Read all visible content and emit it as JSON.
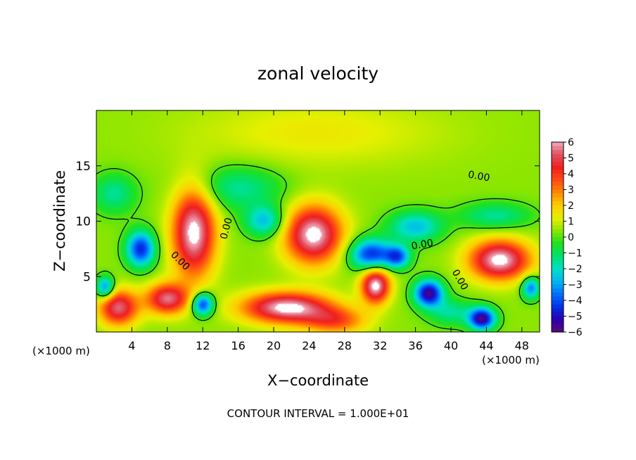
{
  "chart_data": {
    "type": "heatmap",
    "title": "zonal velocity",
    "xlabel": "X−coordinate",
    "ylabel": "Z−coordinate",
    "x_unit_left": "(×1000 m)",
    "x_unit_right": "(×1000 m)",
    "footer": "CONTOUR INTERVAL = 1.000E+01",
    "xlim": [
      0,
      50
    ],
    "ylim": [
      0,
      20
    ],
    "x_ticks": [
      4,
      8,
      12,
      16,
      20,
      24,
      28,
      32,
      36,
      40,
      44,
      48
    ],
    "x_tick_labels": [
      "4",
      "8",
      "12",
      "16",
      "20",
      "24",
      "28",
      "32",
      "36",
      "40",
      "44",
      "48"
    ],
    "y_ticks": [
      5,
      10,
      15
    ],
    "y_tick_labels": [
      "5",
      "10",
      "15"
    ],
    "colorbar": {
      "min": -6,
      "max": 6,
      "labels": [
        "6",
        "5",
        "4",
        "3",
        "2",
        "1",
        "0",
        "−1",
        "−2",
        "−3",
        "−4",
        "−5",
        "−6"
      ],
      "label_values": [
        6,
        5,
        4,
        3,
        2,
        1,
        0,
        -1,
        -2,
        -3,
        -4,
        -5,
        -6
      ],
      "colors": [
        "#5a0a7a",
        "#2a00b0",
        "#0033e8",
        "#0070ff",
        "#00b8f0",
        "#00e0c8",
        "#00e06a",
        "#20e020",
        "#8ce600",
        "#e6f000",
        "#ffcc00",
        "#ff8a00",
        "#ff4a14",
        "#f01e1e",
        "#e05060",
        "#f4a8b8"
      ]
    },
    "contour_labels": [
      "0.00",
      "0.00",
      "0.00",
      "0.00",
      "0.00"
    ],
    "grid": false,
    "features": [
      {
        "x": 11,
        "z": 9.0,
        "value": 6,
        "sx": 2.4,
        "sz": 4.0
      },
      {
        "x": 24.5,
        "z": 8.8,
        "value": 6,
        "sx": 3.2,
        "sz": 2.6
      },
      {
        "x": 45.5,
        "z": 6.5,
        "value": 6,
        "sx": 3.4,
        "sz": 1.8
      },
      {
        "x": 31.5,
        "z": 4.2,
        "value": 6,
        "sx": 1.6,
        "sz": 1.6
      },
      {
        "x": 21.5,
        "z": 2.2,
        "value": 6,
        "sx": 5.0,
        "sz": 1.4
      },
      {
        "x": 2.5,
        "z": 2.2,
        "value": 5,
        "sx": 2.2,
        "sz": 1.6
      },
      {
        "x": 8.0,
        "z": 3.0,
        "value": 5,
        "sx": 2.4,
        "sz": 1.4
      },
      {
        "x": 31.0,
        "z": 7.0,
        "value": -5,
        "sx": 2.4,
        "sz": 1.4
      },
      {
        "x": 19.0,
        "z": 10.0,
        "value": -3,
        "sx": 2.2,
        "sz": 1.4
      },
      {
        "x": 5.0,
        "z": 7.5,
        "value": -5,
        "sx": 1.6,
        "sz": 1.6
      },
      {
        "x": 37.5,
        "z": 3.5,
        "value": -6,
        "sx": 1.6,
        "sz": 1.2
      },
      {
        "x": 43.5,
        "z": 1.2,
        "value": -6,
        "sx": 1.5,
        "sz": 1.0
      },
      {
        "x": 34.0,
        "z": 6.8,
        "value": -4,
        "sx": 1.4,
        "sz": 1.0
      },
      {
        "x": 12.0,
        "z": 2.5,
        "value": -5,
        "sx": 1.2,
        "sz": 1.0
      },
      {
        "x": 1.0,
        "z": 4.0,
        "value": -4,
        "sx": 1.0,
        "sz": 1.0
      },
      {
        "x": 49.0,
        "z": 4.0,
        "value": -4,
        "sx": 1.0,
        "sz": 1.0
      },
      {
        "x": 16.0,
        "z": 13.0,
        "value": -2,
        "sx": 5.0,
        "sz": 2.0
      },
      {
        "x": 36.0,
        "z": 9.5,
        "value": -3,
        "sx": 3.0,
        "sz": 1.4
      },
      {
        "x": 45.0,
        "z": 10.5,
        "value": -2,
        "sx": 4.0,
        "sz": 1.2
      },
      {
        "x": 27.0,
        "z": 1.0,
        "value": 3,
        "sx": 3.5,
        "sz": 1.2
      },
      {
        "x": 40.0,
        "z": 1.8,
        "value": -2,
        "sx": 2.5,
        "sz": 1.2
      },
      {
        "x": 2.0,
        "z": 12.5,
        "value": -2,
        "sx": 2.5,
        "sz": 1.8
      },
      {
        "x": 25.0,
        "z": 18.0,
        "value": 1,
        "sx": 14.0,
        "sz": 3.0
      }
    ]
  }
}
